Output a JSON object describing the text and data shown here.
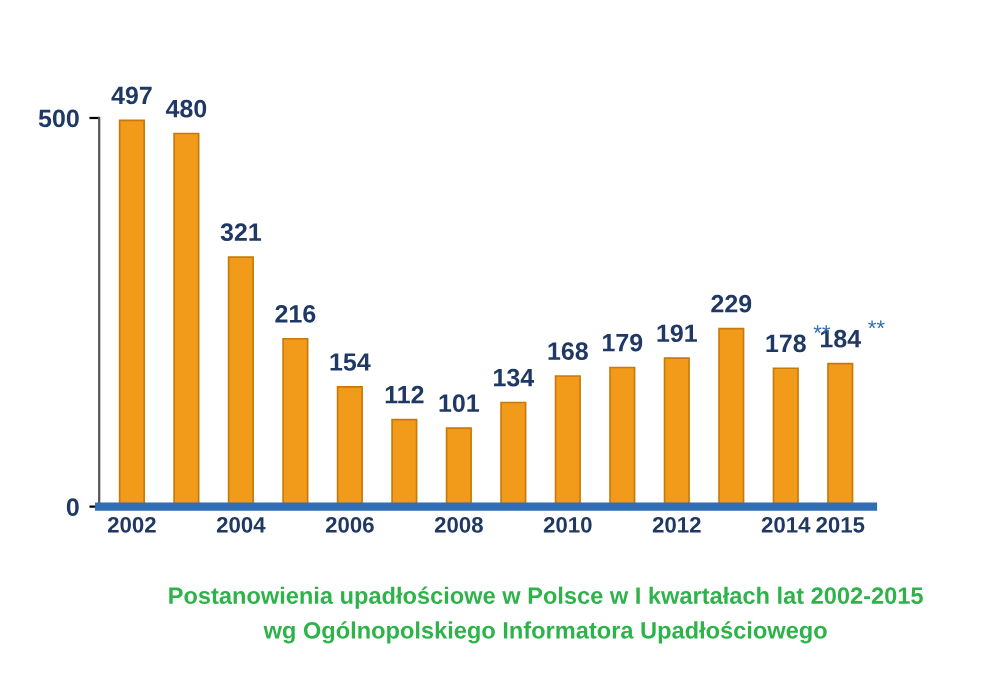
{
  "chart_data": {
    "type": "bar",
    "categories": [
      "2002",
      null,
      "2004",
      null,
      "2006",
      null,
      "2008",
      null,
      "2010",
      null,
      "2012",
      null,
      "2014",
      "2015"
    ],
    "values": [
      497,
      480,
      321,
      216,
      154,
      112,
      101,
      134,
      168,
      179,
      191,
      229,
      178,
      184
    ],
    "color": "#f29a1a",
    "ylim": [
      0,
      500
    ],
    "yticks": [
      0,
      500
    ],
    "grid": false,
    "data_labels": true,
    "annotations": [
      {
        "text": "**",
        "x": "2014",
        "y": 178
      },
      {
        "text": "**",
        "x": "2015",
        "y": 184
      },
      "Postanowienia upadłościowe w Polsce w I kwartałach lat 2002-2015",
      "wg Ogólnopolskiego Informatora Upadłościowego"
    ]
  }
}
